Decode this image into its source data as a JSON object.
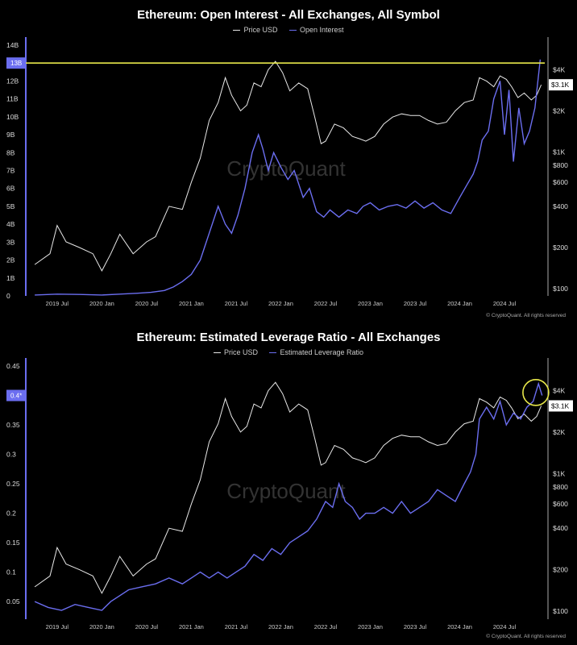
{
  "copyright": "© CryptoQuant. All rights reserved",
  "watermark": "CryptoQuant",
  "colors": {
    "price": "#e8e8e8",
    "series": "#6b6ef0",
    "accent": "#e8e84a",
    "axis": "#6b6ef0"
  },
  "x_ticks": [
    "2019 Jul",
    "2020 Jan",
    "2020 Jul",
    "2021 Jan",
    "2021 Jul",
    "2022 Jan",
    "2022 Jul",
    "2023 Jan",
    "2023 Jul",
    "2024 Jan",
    "2024 Jul"
  ],
  "price_ticks": [
    {
      "label": "$4K",
      "value": 4000
    },
    {
      "label": "$2K",
      "value": 2000
    },
    {
      "label": "$1K",
      "value": 1000
    },
    {
      "label": "$800",
      "value": 800
    },
    {
      "label": "$600",
      "value": 600
    },
    {
      "label": "$400",
      "value": 400
    },
    {
      "label": "$200",
      "value": 200
    },
    {
      "label": "$100",
      "value": 100
    }
  ],
  "price_marker": {
    "label": "$3.1K",
    "value": 3100
  },
  "price_series": {
    "name": "Price USD",
    "x": [
      2019.25,
      2019.42,
      2019.5,
      2019.6,
      2019.75,
      2019.9,
      2020.0,
      2020.1,
      2020.2,
      2020.35,
      2020.5,
      2020.6,
      2020.75,
      2020.9,
      2021.0,
      2021.1,
      2021.2,
      2021.3,
      2021.38,
      2021.45,
      2021.55,
      2021.62,
      2021.7,
      2021.78,
      2021.86,
      2021.94,
      2022.02,
      2022.1,
      2022.2,
      2022.3,
      2022.38,
      2022.45,
      2022.5,
      2022.6,
      2022.7,
      2022.8,
      2022.88,
      2022.95,
      2023.05,
      2023.15,
      2023.25,
      2023.35,
      2023.45,
      2023.55,
      2023.65,
      2023.75,
      2023.85,
      2023.95,
      2024.05,
      2024.15,
      2024.22,
      2024.3,
      2024.38,
      2024.45,
      2024.52,
      2024.58,
      2024.65,
      2024.72,
      2024.8,
      2024.86,
      2024.91
    ],
    "y": [
      150,
      180,
      290,
      220,
      200,
      180,
      135,
      180,
      250,
      180,
      220,
      240,
      400,
      380,
      600,
      900,
      1700,
      2300,
      3500,
      2600,
      2000,
      2200,
      3200,
      3000,
      4000,
      4600,
      3800,
      2800,
      3200,
      2900,
      1800,
      1150,
      1200,
      1600,
      1500,
      1300,
      1250,
      1200,
      1300,
      1600,
      1800,
      1900,
      1850,
      1850,
      1700,
      1600,
      1650,
      2000,
      2300,
      2400,
      3500,
      3300,
      3000,
      3600,
      3400,
      3000,
      2500,
      2700,
      2400,
      2600,
      3100
    ]
  },
  "oi_chart": {
    "title": "Ethereum: Open Interest - All Exchanges, All Symbol",
    "legend": [
      "Price USD",
      "Open Interest"
    ],
    "y_ticks": [
      "0",
      "1B",
      "2B",
      "3B",
      "4B",
      "5B",
      "6B",
      "7B",
      "8B",
      "9B",
      "10B",
      "11B",
      "12B",
      "13B",
      "14B"
    ],
    "marker_label": "13B",
    "ylim": [
      0,
      14
    ],
    "series": {
      "name": "Open Interest",
      "x": [
        2019.25,
        2019.5,
        2019.75,
        2020.0,
        2020.2,
        2020.4,
        2020.55,
        2020.7,
        2020.8,
        2020.9,
        2021.0,
        2021.1,
        2021.2,
        2021.3,
        2021.38,
        2021.45,
        2021.52,
        2021.6,
        2021.68,
        2021.75,
        2021.8,
        2021.86,
        2021.92,
        2022.0,
        2022.08,
        2022.15,
        2022.25,
        2022.32,
        2022.4,
        2022.48,
        2022.55,
        2022.65,
        2022.75,
        2022.85,
        2022.92,
        2023.0,
        2023.1,
        2023.2,
        2023.3,
        2023.4,
        2023.5,
        2023.6,
        2023.7,
        2023.8,
        2023.9,
        2024.0,
        2024.08,
        2024.15,
        2024.2,
        2024.25,
        2024.32,
        2024.38,
        2024.45,
        2024.5,
        2024.55,
        2024.6,
        2024.66,
        2024.72,
        2024.78,
        2024.84,
        2024.9
      ],
      "y": [
        0.05,
        0.1,
        0.08,
        0.05,
        0.1,
        0.15,
        0.2,
        0.3,
        0.5,
        0.8,
        1.2,
        2.0,
        3.5,
        5.0,
        4.0,
        3.5,
        4.5,
        6.0,
        8.0,
        9.0,
        8.2,
        7.0,
        8.0,
        7.2,
        6.5,
        7.0,
        5.5,
        6.0,
        4.7,
        4.4,
        4.8,
        4.4,
        4.8,
        4.6,
        5.0,
        5.2,
        4.8,
        5.0,
        5.1,
        4.9,
        5.3,
        4.9,
        5.2,
        4.8,
        4.6,
        5.5,
        6.2,
        6.8,
        7.5,
        8.7,
        9.2,
        11.0,
        12.0,
        9.0,
        11.5,
        7.5,
        10.5,
        8.5,
        9.2,
        10.5,
        13.2
      ]
    }
  },
  "lev_chart": {
    "title": "Ethereum: Estimated Leverage Ratio - All Exchanges",
    "legend": [
      "Price USD",
      "Estimated Leverage Ratio"
    ],
    "y_ticks": [
      "0.05",
      "0.1",
      "0.15",
      "0.2",
      "0.25",
      "0.3",
      "0.35",
      "0.4",
      "0.45"
    ],
    "marker_label": "0.4*",
    "ylim": [
      0.02,
      0.45
    ],
    "series": {
      "name": "Estimated Leverage Ratio",
      "x": [
        2019.25,
        2019.4,
        2019.55,
        2019.7,
        2019.85,
        2020.0,
        2020.1,
        2020.2,
        2020.3,
        2020.45,
        2020.6,
        2020.75,
        2020.9,
        2021.0,
        2021.1,
        2021.2,
        2021.3,
        2021.4,
        2021.5,
        2021.6,
        2021.7,
        2021.8,
        2021.9,
        2022.0,
        2022.1,
        2022.2,
        2022.3,
        2022.4,
        2022.5,
        2022.58,
        2022.65,
        2022.72,
        2022.8,
        2022.88,
        2022.95,
        2023.05,
        2023.15,
        2023.25,
        2023.35,
        2023.45,
        2023.55,
        2023.65,
        2023.75,
        2023.85,
        2023.95,
        2024.05,
        2024.12,
        2024.18,
        2024.22,
        2024.3,
        2024.38,
        2024.45,
        2024.52,
        2024.6,
        2024.68,
        2024.75,
        2024.82,
        2024.88,
        2024.92
      ],
      "y": [
        0.05,
        0.04,
        0.035,
        0.045,
        0.04,
        0.035,
        0.05,
        0.06,
        0.07,
        0.075,
        0.08,
        0.09,
        0.08,
        0.09,
        0.1,
        0.09,
        0.1,
        0.09,
        0.1,
        0.11,
        0.13,
        0.12,
        0.14,
        0.13,
        0.15,
        0.16,
        0.17,
        0.19,
        0.22,
        0.21,
        0.25,
        0.22,
        0.21,
        0.19,
        0.2,
        0.2,
        0.21,
        0.2,
        0.22,
        0.2,
        0.21,
        0.22,
        0.24,
        0.23,
        0.22,
        0.25,
        0.27,
        0.3,
        0.36,
        0.38,
        0.36,
        0.39,
        0.35,
        0.37,
        0.36,
        0.38,
        0.39,
        0.42,
        0.4
      ]
    }
  }
}
